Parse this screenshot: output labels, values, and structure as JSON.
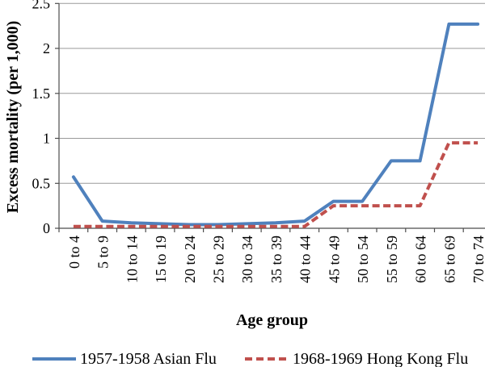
{
  "chart_data": {
    "type": "line",
    "title": "",
    "xlabel": "Age group",
    "ylabel": "Excess mortality (per 1,000)",
    "categories": [
      "0 to 4",
      "5 to 9",
      "10 to 14",
      "15 to 19",
      "20 to 24",
      "25 to 29",
      "30 to 34",
      "35 to 39",
      "40 to 44",
      "45 to 49",
      "50 to 54",
      "55 to 59",
      "60 to 64",
      "65 to 69",
      "70 to 74"
    ],
    "series": [
      {
        "name": "1957-1958 Asian Flu",
        "color": "#4f81bd",
        "style": "solid",
        "values": [
          0.57,
          0.08,
          0.06,
          0.05,
          0.04,
          0.04,
          0.05,
          0.06,
          0.08,
          0.3,
          0.3,
          0.75,
          0.75,
          2.27,
          2.27
        ]
      },
      {
        "name": "1968-1969 Hong Kong Flu",
        "color": "#c0504d",
        "style": "dashed",
        "values": [
          0.02,
          0.02,
          0.02,
          0.02,
          0.02,
          0.02,
          0.02,
          0.02,
          0.02,
          0.25,
          0.25,
          0.25,
          0.25,
          0.95,
          0.95
        ]
      }
    ],
    "ylim": [
      0,
      2.5
    ],
    "ytick_step": 0.5,
    "yticks": [
      "0",
      "0.5",
      "1",
      "1.5",
      "2",
      "2.5"
    ],
    "grid": "horizontal",
    "legend_position": "bottom"
  },
  "colors": {
    "axis": "#4d4d4d",
    "gridline": "#9a9a9a",
    "background": "#ffffff",
    "text": "#000000"
  }
}
